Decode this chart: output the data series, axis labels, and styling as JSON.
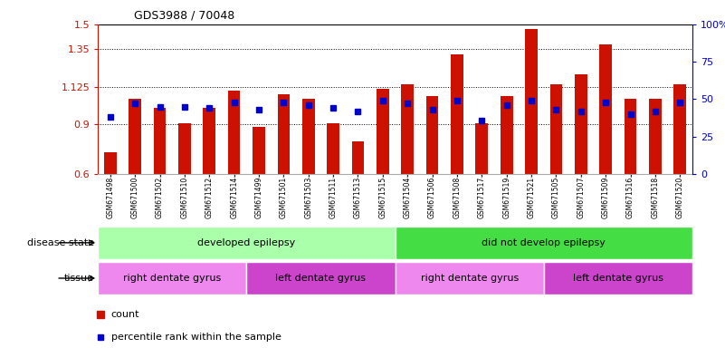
{
  "title": "GDS3988 / 70048",
  "samples": [
    "GSM671498",
    "GSM671500",
    "GSM671502",
    "GSM671510",
    "GSM671512",
    "GSM671514",
    "GSM671499",
    "GSM671501",
    "GSM671503",
    "GSM671511",
    "GSM671513",
    "GSM671515",
    "GSM671504",
    "GSM671506",
    "GSM671508",
    "GSM671517",
    "GSM671519",
    "GSM671521",
    "GSM671505",
    "GSM671507",
    "GSM671509",
    "GSM671516",
    "GSM671518",
    "GSM671520"
  ],
  "counts": [
    0.73,
    1.05,
    1.0,
    0.905,
    1.0,
    1.1,
    0.885,
    1.08,
    1.05,
    0.905,
    0.795,
    1.115,
    1.14,
    1.07,
    1.32,
    0.905,
    1.07,
    1.47,
    1.14,
    1.2,
    1.38,
    1.05,
    1.05,
    1.14
  ],
  "percentiles": [
    38,
    47,
    45,
    45,
    44,
    48,
    43,
    48,
    46,
    44,
    42,
    49,
    47,
    43,
    49,
    36,
    46,
    49,
    43,
    42,
    48,
    40,
    42,
    48
  ],
  "ylim_left": [
    0.6,
    1.5
  ],
  "ylim_right": [
    0,
    100
  ],
  "yticks_left": [
    0.6,
    0.9,
    1.125,
    1.35,
    1.5
  ],
  "yticks_left_labels": [
    "0.6",
    "0.9",
    "1.125",
    "1.35",
    "1.5"
  ],
  "yticks_right": [
    0,
    25,
    50,
    75,
    100
  ],
  "bar_color": "#cc1100",
  "dot_color": "#0000cc",
  "disease_state_groups": [
    {
      "label": "developed epilepsy",
      "start": 0,
      "end": 11,
      "color": "#aaffaa"
    },
    {
      "label": "did not develop epilepsy",
      "start": 12,
      "end": 23,
      "color": "#44dd44"
    }
  ],
  "tissue_groups": [
    {
      "label": "right dentate gyrus",
      "start": 0,
      "end": 5,
      "color": "#ee88ee"
    },
    {
      "label": "left dentate gyrus",
      "start": 6,
      "end": 11,
      "color": "#cc44cc"
    },
    {
      "label": "right dentate gyrus",
      "start": 12,
      "end": 17,
      "color": "#ee88ee"
    },
    {
      "label": "left dentate gyrus",
      "start": 18,
      "end": 23,
      "color": "#cc44cc"
    }
  ],
  "legend_count_label": "count",
  "legend_pct_label": "percentile rank within the sample",
  "disease_state_label": "disease state",
  "tissue_label": "tissue",
  "bg_color": "#ffffff",
  "axis_color_left": "#cc1100",
  "axis_color_right": "#0000cc",
  "grid_yticks": [
    0.9,
    1.125,
    1.35
  ],
  "bar_bottom": 0.6,
  "xtick_bg": "#dddddd"
}
